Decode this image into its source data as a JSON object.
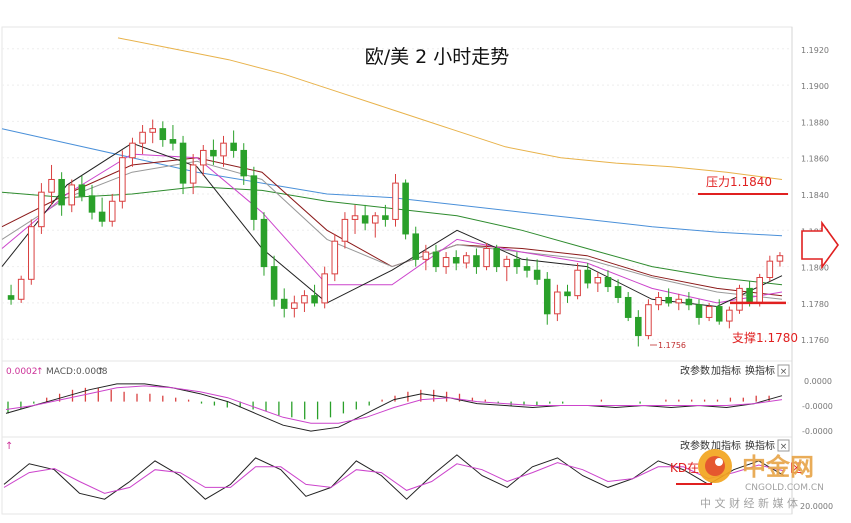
{
  "chart_data": {
    "type": "candlestick",
    "title": "欧/美 2 小时走势",
    "price_axis": {
      "ylim": [
        1.1748,
        1.1932
      ],
      "ticks": [
        "1.1920",
        "1.1900",
        "1.1880",
        "1.1860",
        "1.1840",
        "1.1820",
        "1.1800",
        "1.1780",
        "1.1760"
      ]
    },
    "candles": [
      [
        1.1784,
        1.179,
        1.1779,
        1.1782
      ],
      [
        1.1782,
        1.1795,
        1.178,
        1.1793
      ],
      [
        1.1793,
        1.1826,
        1.179,
        1.1822
      ],
      [
        1.1822,
        1.1846,
        1.1818,
        1.1841
      ],
      [
        1.1841,
        1.1856,
        1.1834,
        1.1848
      ],
      [
        1.1848,
        1.1852,
        1.1828,
        1.1834
      ],
      [
        1.1834,
        1.1848,
        1.183,
        1.1845
      ],
      [
        1.1845,
        1.185,
        1.1836,
        1.1839
      ],
      [
        1.1839,
        1.1845,
        1.1826,
        1.183
      ],
      [
        1.183,
        1.1838,
        1.1822,
        1.1825
      ],
      [
        1.1825,
        1.184,
        1.1822,
        1.1836
      ],
      [
        1.1836,
        1.1864,
        1.1832,
        1.186
      ],
      [
        1.186,
        1.1871,
        1.1855,
        1.1868
      ],
      [
        1.1868,
        1.1878,
        1.1862,
        1.1874
      ],
      [
        1.1874,
        1.1881,
        1.1868,
        1.1876
      ],
      [
        1.1876,
        1.188,
        1.1866,
        1.187
      ],
      [
        1.187,
        1.1878,
        1.1864,
        1.1868
      ],
      [
        1.1868,
        1.1872,
        1.184,
        1.1846
      ],
      [
        1.1846,
        1.1862,
        1.184,
        1.1856
      ],
      [
        1.1856,
        1.1867,
        1.185,
        1.1864
      ],
      [
        1.1864,
        1.187,
        1.1856,
        1.1861
      ],
      [
        1.1861,
        1.1872,
        1.1855,
        1.1868
      ],
      [
        1.1868,
        1.1875,
        1.186,
        1.1864
      ],
      [
        1.1864,
        1.1868,
        1.1845,
        1.185
      ],
      [
        1.185,
        1.1855,
        1.182,
        1.1826
      ],
      [
        1.1826,
        1.183,
        1.1795,
        1.18
      ],
      [
        1.18,
        1.1806,
        1.1778,
        1.1782
      ],
      [
        1.1782,
        1.1788,
        1.1772,
        1.1777
      ],
      [
        1.1777,
        1.1784,
        1.1772,
        1.178
      ],
      [
        1.178,
        1.1787,
        1.1775,
        1.1784
      ],
      [
        1.1784,
        1.179,
        1.1778,
        1.178
      ],
      [
        1.178,
        1.18,
        1.1777,
        1.1796
      ],
      [
        1.1796,
        1.1818,
        1.1792,
        1.1814
      ],
      [
        1.1814,
        1.183,
        1.181,
        1.1826
      ],
      [
        1.1826,
        1.1834,
        1.1818,
        1.1828
      ],
      [
        1.1828,
        1.1834,
        1.182,
        1.1824
      ],
      [
        1.1824,
        1.183,
        1.1816,
        1.1828
      ],
      [
        1.1828,
        1.1834,
        1.1822,
        1.1826
      ],
      [
        1.1826,
        1.1851,
        1.1822,
        1.1846
      ],
      [
        1.1846,
        1.1848,
        1.1815,
        1.1818
      ],
      [
        1.1818,
        1.1822,
        1.18,
        1.1804
      ],
      [
        1.1804,
        1.1812,
        1.1798,
        1.1808
      ],
      [
        1.1808,
        1.1812,
        1.1797,
        1.18
      ],
      [
        1.18,
        1.1808,
        1.1796,
        1.1805
      ],
      [
        1.1805,
        1.1809,
        1.1798,
        1.1802
      ],
      [
        1.1802,
        1.1808,
        1.1799,
        1.1806
      ],
      [
        1.1806,
        1.181,
        1.1796,
        1.18
      ],
      [
        1.18,
        1.1813,
        1.1798,
        1.181
      ],
      [
        1.181,
        1.1812,
        1.1797,
        1.18
      ],
      [
        1.18,
        1.1806,
        1.1792,
        1.1804
      ],
      [
        1.1804,
        1.1808,
        1.1796,
        1.18
      ],
      [
        1.18,
        1.1805,
        1.1794,
        1.1798
      ],
      [
        1.1798,
        1.1804,
        1.179,
        1.1793
      ],
      [
        1.1793,
        1.1797,
        1.1768,
        1.1774
      ],
      [
        1.1774,
        1.179,
        1.177,
        1.1786
      ],
      [
        1.1786,
        1.179,
        1.178,
        1.1784
      ],
      [
        1.1784,
        1.1802,
        1.1782,
        1.1798
      ],
      [
        1.1798,
        1.1802,
        1.1788,
        1.1791
      ],
      [
        1.1791,
        1.1797,
        1.1786,
        1.1794
      ],
      [
        1.1794,
        1.1798,
        1.1786,
        1.1789
      ],
      [
        1.1789,
        1.1793,
        1.178,
        1.1783
      ],
      [
        1.1783,
        1.1786,
        1.177,
        1.1772
      ],
      [
        1.1772,
        1.1776,
        1.1756,
        1.1762
      ],
      [
        1.1762,
        1.1782,
        1.176,
        1.1779
      ],
      [
        1.1779,
        1.1786,
        1.1776,
        1.1783
      ],
      [
        1.1783,
        1.1788,
        1.1778,
        1.178
      ],
      [
        1.178,
        1.1785,
        1.1776,
        1.1782
      ],
      [
        1.1782,
        1.1786,
        1.1776,
        1.1779
      ],
      [
        1.1779,
        1.1782,
        1.1768,
        1.1772
      ],
      [
        1.1772,
        1.178,
        1.177,
        1.1778
      ],
      [
        1.1778,
        1.1782,
        1.1768,
        1.177
      ],
      [
        1.177,
        1.1778,
        1.1766,
        1.1776
      ],
      [
        1.1776,
        1.179,
        1.1774,
        1.1788
      ],
      [
        1.1788,
        1.1792,
        1.1778,
        1.178
      ],
      [
        1.178,
        1.1796,
        1.1778,
        1.1794
      ],
      [
        1.1794,
        1.1806,
        1.1792,
        1.1803
      ],
      [
        1.1803,
        1.1808,
        1.18,
        1.1806
      ]
    ],
    "moving_averages": [
      {
        "color": "#e8b24a",
        "values": [
          1.1926,
          1.192,
          1.1914,
          1.1906,
          1.1896,
          1.1886,
          1.1876,
          1.1866,
          1.186,
          1.1857,
          1.1855,
          1.1852,
          1.1848
        ]
      },
      {
        "color": "#4a90d9",
        "values": [
          1.1876,
          1.1868,
          1.186,
          1.1852,
          1.1846,
          1.184,
          1.1838,
          1.1834,
          1.183,
          1.1826,
          1.1822,
          1.1819,
          1.1817
        ]
      },
      {
        "color": "#2e8b2e",
        "values": [
          1.1841,
          1.1838,
          1.184,
          1.1844,
          1.1842,
          1.1836,
          1.1832,
          1.1828,
          1.182,
          1.181,
          1.18,
          1.1794,
          1.179
        ]
      },
      {
        "color": "#8b1a1a",
        "values": [
          1.1822,
          1.184,
          1.1856,
          1.186,
          1.1852,
          1.182,
          1.18,
          1.1812,
          1.181,
          1.1806,
          1.1795,
          1.1788,
          1.1784
        ]
      },
      {
        "color": "#999999",
        "values": [
          1.1815,
          1.1838,
          1.1852,
          1.1858,
          1.1848,
          1.1815,
          1.18,
          1.1812,
          1.1808,
          1.1804,
          1.1794,
          1.1786,
          1.1782
        ]
      },
      {
        "color": "#cc44cc",
        "values": [
          1.181,
          1.184,
          1.1862,
          1.186,
          1.183,
          1.179,
          1.179,
          1.1815,
          1.1808,
          1.1802,
          1.1788,
          1.178,
          1.1786
        ]
      },
      {
        "color": "#222222",
        "values": [
          1.18,
          1.1845,
          1.1868,
          1.1855,
          1.181,
          1.178,
          1.1798,
          1.182,
          1.1804,
          1.18,
          1.1782,
          1.1778,
          1.1795
        ]
      }
    ],
    "annotations": {
      "resistance": {
        "label": "压力1.1840",
        "value": 1.184,
        "color": "#e02020"
      },
      "support": {
        "label": "支撑1.1780",
        "value": 1.178,
        "color": "#e02020"
      },
      "low_label": "1.1756"
    },
    "macd": {
      "header_left": "0.0002",
      "header_label": "MACD:0.0008",
      "toolbar": [
        "改参数",
        "加指标",
        "换指标"
      ],
      "close_mark": "×",
      "ticks": [
        "0.0000",
        "-0.0000",
        "-0.0000"
      ],
      "ylim": [
        -0.0018,
        0.0012
      ],
      "histogram": [
        -0.0006,
        -0.0004,
        -0.0001,
        0.0002,
        0.0004,
        0.0006,
        0.0007,
        0.0007,
        0.0006,
        0.0005,
        0.0004,
        0.0004,
        0.0003,
        0.0002,
        0.0001,
        -0.0001,
        -0.0002,
        -0.0003,
        -0.0003,
        -0.0004,
        -0.0005,
        -0.0007,
        -0.0008,
        -0.0009,
        -0.0009,
        -0.0008,
        -0.0006,
        -0.0004,
        -0.0002,
        0.0001,
        0.0003,
        0.0005,
        0.0006,
        0.0006,
        0.0005,
        0.0004,
        0.0002,
        0.0001,
        -0.0001,
        -0.0002,
        -0.0002,
        -0.0002,
        -0.0001,
        -0.0001,
        0.0,
        0.0,
        0.0001,
        0.0,
        0.0,
        -0.0001,
        0.0,
        0.0001,
        0.0001,
        0.0001,
        0.0001,
        0.0001,
        0.0002,
        0.0002,
        0.0003,
        0.0003
      ],
      "dif": [
        -0.0006,
        -0.0002,
        0.0002,
        0.0006,
        0.0009,
        0.0009,
        0.0007,
        0.0004,
        0.0,
        -0.0006,
        -0.0012,
        -0.0015,
        -0.0013,
        -0.0006,
        0.0001,
        0.0004,
        0.0002,
        -0.0001,
        -0.0002,
        -0.0003,
        -0.0002,
        -0.0002,
        -0.0003,
        -0.0002,
        -0.0003,
        -0.0002,
        -0.0003,
        -0.0001,
        0.0003
      ],
      "dea": [
        -0.0004,
        -0.0002,
        0.0001,
        0.0004,
        0.0007,
        0.0008,
        0.0007,
        0.0005,
        0.0002,
        -0.0003,
        -0.0008,
        -0.0011,
        -0.0011,
        -0.0008,
        -0.0003,
        0.0001,
        0.0002,
        0.0,
        -0.0001,
        -0.0002,
        -0.0002,
        -0.0002,
        -0.0002,
        -0.0002,
        -0.0002,
        -0.0002,
        -0.0002,
        -0.0001,
        0.0001
      ]
    },
    "kd": {
      "header": "↑",
      "toolbar": [
        "改参数",
        "加指标",
        "换指标"
      ],
      "close_mark": "×",
      "ticks": [
        "",
        "",
        "20.0000"
      ],
      "ylim": [
        0,
        100
      ],
      "k": [
        45,
        80,
        70,
        30,
        20,
        50,
        85,
        60,
        20,
        45,
        90,
        70,
        25,
        40,
        85,
        60,
        20,
        60,
        95,
        60,
        40,
        75,
        90,
        60,
        40,
        55,
        85,
        70,
        45,
        70,
        85,
        60
      ],
      "d": [
        40,
        65,
        72,
        50,
        30,
        40,
        70,
        65,
        40,
        40,
        75,
        75,
        45,
        40,
        70,
        65,
        35,
        50,
        80,
        70,
        50,
        65,
        82,
        70,
        50,
        55,
        75,
        75,
        55,
        65,
        78,
        68
      ],
      "annotation": "KD在",
      "annotation_tail": "区"
    },
    "watermark": {
      "brand": "中金网",
      "site": "CNGOLD.COM.CN",
      "tagline": "中 文 财 经 新 媒 体"
    }
  }
}
